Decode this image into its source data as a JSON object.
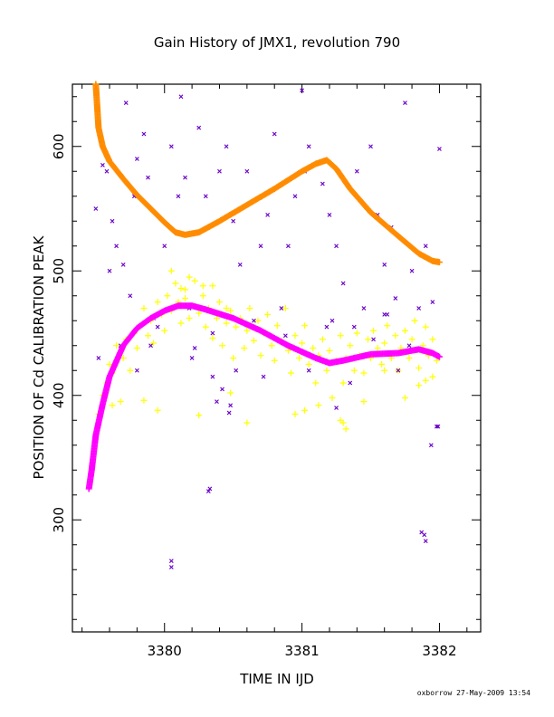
{
  "chart_data": {
    "type": "scatter",
    "title": "Gain History of JMX1, revolution 790",
    "xlabel": "TIME IN IJD",
    "ylabel": "POSITION OF Cd CALIBRATION PEAK",
    "xlim": [
      3379.33,
      3382.3
    ],
    "ylim": [
      210,
      650
    ],
    "xticks": [
      3380,
      3381,
      3382
    ],
    "yticks": [
      300,
      400,
      500,
      600
    ],
    "grid": false,
    "colors": {
      "orange_trend": "#ff8c00",
      "magenta_trend": "#ff00ff",
      "yellow_scatter": "#ffff00",
      "purple_scatter": "#6a00c8"
    },
    "series": [
      {
        "style": "orange-plus-line",
        "x": [
          3379.5,
          3379.52,
          3379.55,
          3379.6,
          3379.7,
          3379.8,
          3379.9,
          3380.0,
          3380.08,
          3380.15,
          3380.25,
          3380.4,
          3380.6,
          3380.8,
          3381.0,
          3381.1,
          3381.18,
          3381.25,
          3381.35,
          3381.5,
          3381.7,
          3381.85,
          3381.95,
          3382.0
        ],
        "y": [
          650,
          615,
          600,
          588,
          574,
          561,
          550,
          539,
          531,
          529,
          531,
          540,
          553,
          566,
          580,
          586,
          589,
          582,
          566,
          547,
          528,
          514,
          508,
          507
        ]
      },
      {
        "style": "magenta-plus-line",
        "x": [
          3379.45,
          3379.47,
          3379.5,
          3379.55,
          3379.6,
          3379.7,
          3379.8,
          3379.9,
          3380.0,
          3380.1,
          3380.2,
          3380.3,
          3380.5,
          3380.7,
          3380.9,
          3381.1,
          3381.2,
          3381.3,
          3381.5,
          3381.7,
          3381.85,
          3381.95,
          3382.0
        ],
        "y": [
          325,
          340,
          368,
          393,
          415,
          440,
          454,
          462,
          468,
          472,
          472,
          469,
          462,
          452,
          440,
          430,
          426,
          428,
          433,
          434,
          437,
          434,
          431
        ]
      },
      {
        "style": "yellow-plus-scatter",
        "x": [
          3379.52,
          3379.55,
          3379.58,
          3379.6,
          3379.62,
          3379.65,
          3379.68,
          3379.7,
          3379.72,
          3379.75,
          3379.78,
          3379.8,
          3379.82,
          3379.85,
          3379.88,
          3379.9,
          3379.92,
          3379.95,
          3379.98,
          3380.0,
          3380.02,
          3380.05,
          3380.08,
          3380.1,
          3380.12,
          3380.15,
          3380.18,
          3380.2,
          3380.22,
          3380.25,
          3380.28,
          3380.3,
          3380.32,
          3380.35,
          3380.38,
          3380.4,
          3380.42,
          3380.45,
          3380.48,
          3380.5,
          3380.52,
          3380.55,
          3380.58,
          3380.6,
          3380.62,
          3380.65,
          3380.68,
          3380.7,
          3380.72,
          3380.75,
          3380.78,
          3380.8,
          3380.82,
          3380.85,
          3380.88,
          3380.9,
          3380.92,
          3380.95,
          3380.98,
          3381.0,
          3381.02,
          3381.05,
          3381.08,
          3381.1,
          3381.12,
          3381.15,
          3381.18,
          3381.2,
          3381.22,
          3381.25,
          3381.28,
          3381.3,
          3381.32,
          3381.35,
          3381.38,
          3381.4,
          3381.42,
          3381.45,
          3381.48,
          3381.5,
          3381.52,
          3381.55,
          3381.58,
          3381.6,
          3381.62,
          3381.65,
          3381.68,
          3381.7,
          3381.72,
          3381.75,
          3381.78,
          3381.8,
          3381.82,
          3381.85,
          3381.88,
          3381.9,
          3381.92,
          3381.95,
          3381.98,
          3380.05,
          3380.18,
          3380.28,
          3380.12,
          3381.02,
          3381.85,
          3379.62,
          3379.85,
          3380.48,
          3380.6,
          3380.95,
          3381.28,
          3381.32,
          3381.45,
          3381.75,
          3381.9,
          3380.35,
          3380.15,
          3380.45,
          3381.12,
          3381.6,
          3380.25,
          3379.95,
          3381.3,
          3381.95
        ],
        "y": [
          385,
          400,
          410,
          425,
          418,
          440,
          395,
          430,
          445,
          420,
          450,
          438,
          455,
          470,
          448,
          460,
          442,
          475,
          465,
          452,
          480,
          468,
          490,
          475,
          458,
          485,
          462,
          472,
          492,
          466,
          480,
          455,
          470,
          446,
          462,
          475,
          440,
          458,
          468,
          430,
          455,
          462,
          438,
          452,
          470,
          444,
          460,
          432,
          450,
          465,
          440,
          428,
          456,
          444,
          470,
          436,
          418,
          448,
          430,
          442,
          456,
          425,
          438,
          410,
          432,
          445,
          420,
          436,
          398,
          428,
          448,
          410,
          430,
          440,
          420,
          450,
          432,
          418,
          445,
          430,
          452,
          438,
          425,
          442,
          456,
          430,
          448,
          420,
          438,
          452,
          430,
          445,
          460,
          422,
          440,
          455,
          432,
          445,
          428,
          500,
          495,
          488,
          486,
          388,
          408,
          392,
          396,
          402,
          378,
          385,
          380,
          373,
          395,
          398,
          412,
          488,
          478,
          470,
          392,
          420,
          384,
          388,
          378,
          415
        ]
      },
      {
        "style": "purple-x-scatter",
        "x": [
          3379.5,
          3379.55,
          3379.6,
          3379.62,
          3379.65,
          3379.7,
          3379.72,
          3379.75,
          3379.78,
          3379.8,
          3379.85,
          3379.88,
          3379.9,
          3379.95,
          3380.0,
          3380.05,
          3380.1,
          3380.12,
          3380.15,
          3380.2,
          3380.25,
          3380.3,
          3380.35,
          3380.4,
          3380.45,
          3380.5,
          3380.55,
          3380.6,
          3380.65,
          3380.7,
          3380.75,
          3380.8,
          3380.85,
          3380.9,
          3380.95,
          3381.0,
          3381.02,
          3381.05,
          3381.1,
          3381.15,
          3381.2,
          3381.25,
          3381.3,
          3381.35,
          3381.4,
          3381.45,
          3381.5,
          3381.55,
          3381.6,
          3381.65,
          3381.7,
          3381.75,
          3381.8,
          3381.85,
          3381.9,
          3381.95,
          3382.0,
          3380.05,
          3380.05,
          3380.33,
          3380.32,
          3380.48,
          3380.47,
          3381.87,
          3381.89,
          3381.9,
          3381.94,
          3379.52,
          3379.58,
          3379.68,
          3379.8,
          3379.92,
          3380.18,
          3380.22,
          3380.38,
          3380.52,
          3380.72,
          3380.88,
          3381.05,
          3381.12,
          3381.25,
          3381.38,
          3381.52,
          3381.68,
          3381.78,
          3381.98,
          3381.99,
          3381.6,
          3381.62,
          3380.35,
          3380.42,
          3381.22,
          3381.18
        ],
        "y": [
          550,
          585,
          500,
          540,
          520,
          505,
          635,
          480,
          560,
          590,
          610,
          575,
          440,
          455,
          520,
          600,
          560,
          640,
          575,
          430,
          615,
          560,
          450,
          580,
          600,
          540,
          505,
          580,
          460,
          520,
          545,
          610,
          470,
          520,
          560,
          645,
          580,
          600,
          430,
          570,
          545,
          520,
          490,
          410,
          580,
          470,
          600,
          545,
          505,
          535,
          420,
          635,
          500,
          470,
          520,
          475,
          598,
          267,
          262,
          325,
          323,
          392,
          386,
          290,
          288,
          283,
          360,
          430,
          580,
          440,
          420,
          462,
          470,
          438,
          395,
          420,
          415,
          448,
          420,
          430,
          390,
          455,
          445,
          478,
          440,
          375,
          375,
          465,
          465,
          415,
          405,
          460,
          455
        ]
      }
    ],
    "annotations": [
      "oxborrow 27-May-2009 13:54"
    ]
  }
}
